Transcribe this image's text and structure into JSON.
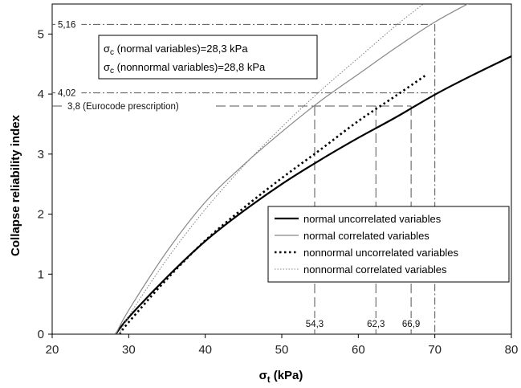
{
  "chart_data": {
    "type": "line",
    "xlabel_main": "σ",
    "xlabel_sub": "t",
    "xlabel_unit": " (kPa)",
    "ylabel": "Collapse reliability index",
    "xlim": [
      20,
      80
    ],
    "ylim": [
      0,
      5.5
    ],
    "x_ticks": [
      "20",
      "30",
      "40",
      "50",
      "60",
      "70",
      "80"
    ],
    "y_ticks": [
      "0",
      "1",
      "2",
      "3",
      "4",
      "5"
    ],
    "series": [
      {
        "name": "normal uncorrelated variables",
        "style": "solid-thick",
        "color": "#000000",
        "x": [
          28.3,
          30,
          35,
          40,
          45,
          50,
          55,
          60,
          65,
          70,
          75,
          80
        ],
        "y": [
          0.0,
          0.28,
          0.95,
          1.55,
          2.05,
          2.5,
          2.9,
          3.27,
          3.62,
          3.99,
          4.32,
          4.63
        ]
      },
      {
        "name": "normal correlated variables",
        "style": "solid-thin",
        "color": "#888888",
        "x": [
          28.3,
          30,
          35,
          40,
          45,
          50,
          55,
          60,
          65,
          70,
          75
        ],
        "y": [
          0.0,
          0.4,
          1.38,
          2.2,
          2.82,
          3.37,
          3.88,
          4.33,
          4.78,
          5.2,
          5.55
        ]
      },
      {
        "name": "nonnormal uncorrelated variables",
        "style": "dotted-thick",
        "color": "#000000",
        "x": [
          28.8,
          30,
          35,
          40,
          45,
          50,
          55,
          60,
          65,
          69
        ],
        "y": [
          0.0,
          0.2,
          0.92,
          1.56,
          2.1,
          2.6,
          3.07,
          3.55,
          3.98,
          4.33
        ]
      },
      {
        "name": "nonnormal correlated variables",
        "style": "dotted-thin",
        "color": "#888888",
        "x": [
          28.8,
          30,
          35,
          40,
          45,
          50,
          55,
          60,
          65,
          68.5
        ],
        "y": [
          0.0,
          0.3,
          1.25,
          2.08,
          2.8,
          3.45,
          4.05,
          4.6,
          5.15,
          5.5
        ]
      }
    ],
    "reference_lines": {
      "horizontal": [
        {
          "value": 5.16,
          "label": "5,16",
          "x_end": 70,
          "style": "dash-dot"
        },
        {
          "value": 4.02,
          "label": "4,02",
          "x_end": 70,
          "style": "dash-dot"
        },
        {
          "value": 3.8,
          "label": "3,8 (Eurocode prescription)",
          "x_end": 66.9,
          "style": "long-dash"
        }
      ],
      "vertical": [
        {
          "value": 54.3,
          "label": "54,3",
          "y_top": 3.8,
          "style": "long-dash"
        },
        {
          "value": 62.3,
          "label": "62,3",
          "y_top": 3.8,
          "style": "long-dash"
        },
        {
          "value": 66.9,
          "label": "66,9",
          "y_top": 3.8,
          "style": "long-dash"
        },
        {
          "value": 70,
          "label": "",
          "y_top": 5.16,
          "style": "dash-dot"
        }
      ]
    },
    "info_box": {
      "line1_sym": "σ",
      "line1_sub": "c",
      "line1_rest": " (normal variables)=28,3 kPa",
      "line2_sym": "σ",
      "line2_sub": "c",
      "line2_rest": " (nonnormal  variables)=28,8 kPa"
    },
    "legend_position": "bottom-right",
    "grid": false
  }
}
